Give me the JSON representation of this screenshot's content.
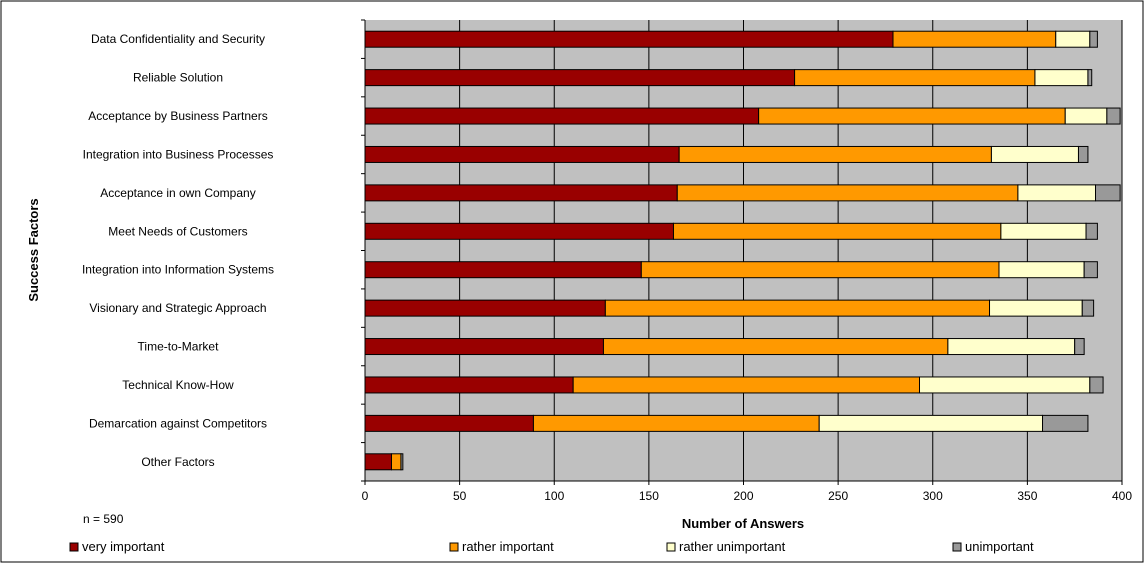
{
  "chart_data": {
    "type": "bar",
    "orientation": "horizontal",
    "stacked": true,
    "categories": [
      "Data Confidentiality and Security",
      "Reliable Solution",
      "Acceptance by Business Partners",
      "Integration into Business Processes",
      "Acceptance in own Company",
      "Meet Needs of Customers",
      "Integration into Information Systems",
      "Visionary and Strategic Approach",
      "Time-to-Market",
      "Technical Know-How",
      "Demarcation against Competitors",
      "Other Factors"
    ],
    "series": [
      {
        "name": "very important",
        "color": "#990000",
        "values": [
          279,
          227,
          208,
          166,
          165,
          163,
          146,
          127,
          126,
          110,
          89,
          14
        ]
      },
      {
        "name": "rather important",
        "color": "#ff9900",
        "values": [
          86,
          127,
          162,
          165,
          180,
          173,
          189,
          203,
          182,
          183,
          151,
          5
        ]
      },
      {
        "name": "rather unimportant",
        "color": "#ffffcc",
        "values": [
          18,
          28,
          22,
          46,
          41,
          45,
          45,
          49,
          67,
          90,
          118,
          0
        ]
      },
      {
        "name": "unimportant",
        "color": "#999999",
        "values": [
          4,
          2,
          7,
          5,
          13,
          6,
          7,
          6,
          5,
          7,
          24,
          1
        ]
      }
    ],
    "xlabel": "Number of Answers",
    "ylabel": "Success Factors",
    "xlim": [
      0,
      400
    ],
    "xticks": [
      0,
      50,
      100,
      150,
      200,
      250,
      300,
      350,
      400
    ],
    "grid": true,
    "plot_background": "#c0c0c0",
    "legend_position": "bottom",
    "note": "n = 590"
  }
}
